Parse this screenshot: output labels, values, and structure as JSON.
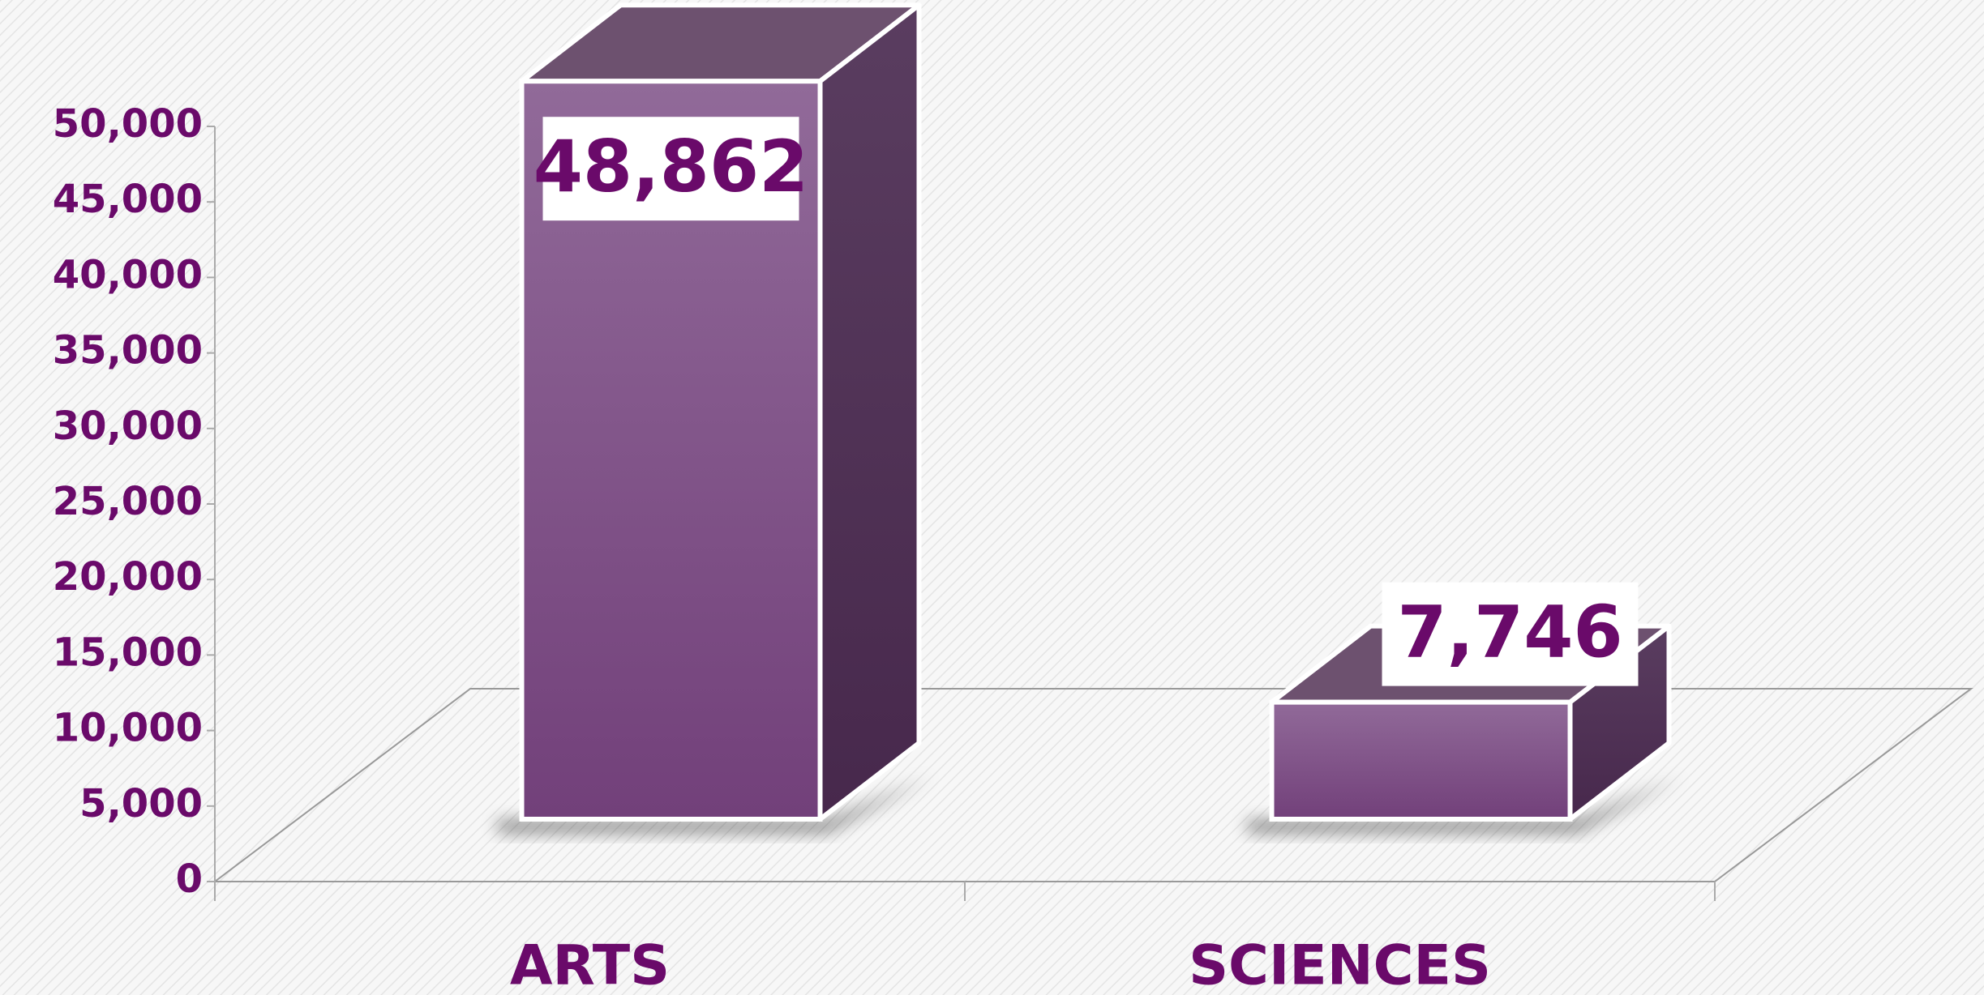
{
  "chart_data": {
    "type": "bar3d",
    "categories": [
      "ARTS",
      "SCIENCES"
    ],
    "values": [
      48862,
      7746
    ],
    "value_labels": [
      "48,862",
      "7,746"
    ],
    "color": "#7e4c85",
    "ylim": [
      0,
      50000
    ],
    "yticks": [
      0,
      {
        "value": 5000,
        "label": "5,000"
      },
      {
        "value": 10000,
        "label": "10,000"
      },
      {
        "value": 15000,
        "label": "15,000"
      },
      {
        "value": 20000,
        "label": "20,000"
      },
      {
        "value": 25000,
        "label": "25,000"
      },
      {
        "value": 30000,
        "label": "30,000"
      },
      {
        "value": 35000,
        "label": "35,000"
      },
      {
        "value": 40000,
        "label": "40,000"
      },
      {
        "value": 45000,
        "label": "45,000"
      },
      {
        "value": 50000,
        "label": "50,000"
      }
    ]
  }
}
